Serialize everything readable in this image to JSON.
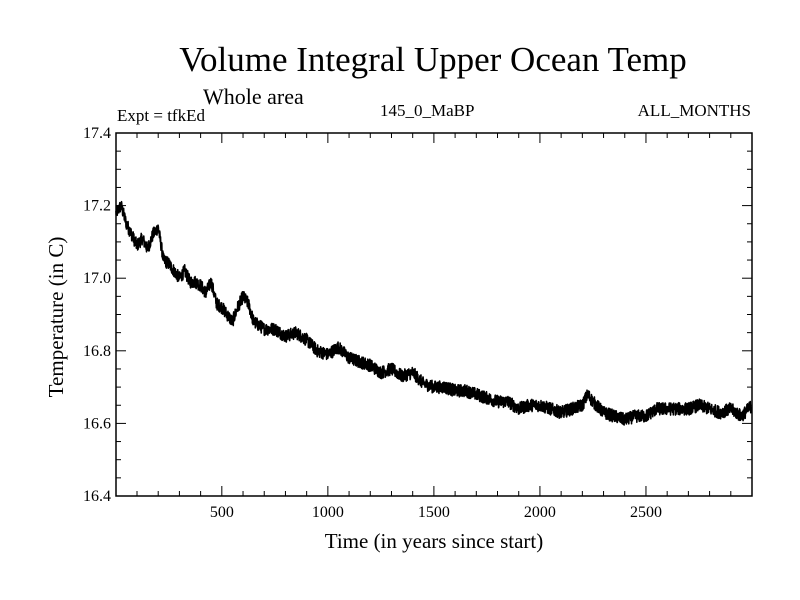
{
  "header": {
    "title": "Volume Integral Upper Ocean Temp",
    "subtitle": "Whole area",
    "expt": "Expt = tfkEd",
    "period": "145_0_MaBP",
    "months": "ALL_MONTHS"
  },
  "chart_data": {
    "type": "line",
    "xlabel": "Time (in years since start)",
    "ylabel": "Temperature (in C)",
    "xlim": [
      1,
      3000
    ],
    "ylim": [
      16.4,
      17.4
    ],
    "xticks": [
      500,
      1000,
      1500,
      2000,
      2500
    ],
    "yticks": [
      16.4,
      16.6,
      16.8,
      17.0,
      17.2,
      17.4
    ],
    "ytick_labels": [
      "16.4",
      "16.6",
      "16.8",
      "17.0",
      "17.2",
      "17.4"
    ],
    "grid": false,
    "series": [
      {
        "x": [
          1,
          25,
          50,
          75,
          100,
          125,
          150,
          175,
          200,
          225,
          250,
          275,
          300,
          325,
          350,
          375,
          400,
          425,
          450,
          475,
          500,
          525,
          550,
          575,
          600,
          625,
          650,
          675,
          700,
          750,
          800,
          850,
          900,
          950,
          1000,
          1050,
          1100,
          1150,
          1200,
          1250,
          1300,
          1350,
          1400,
          1450,
          1500,
          1550,
          1600,
          1650,
          1700,
          1750,
          1800,
          1850,
          1900,
          1950,
          2000,
          2050,
          2100,
          2150,
          2200,
          2225,
          2250,
          2300,
          2350,
          2400,
          2450,
          2500,
          2550,
          2600,
          2650,
          2700,
          2750,
          2800,
          2850,
          2900,
          2950,
          3000
        ],
        "y": [
          17.18,
          17.2,
          17.15,
          17.12,
          17.09,
          17.11,
          17.08,
          17.12,
          17.14,
          17.05,
          17.04,
          17.02,
          17.0,
          17.02,
          16.99,
          16.99,
          16.98,
          16.96,
          16.99,
          16.93,
          16.92,
          16.9,
          16.88,
          16.92,
          16.95,
          16.93,
          16.88,
          16.87,
          16.86,
          16.86,
          16.84,
          16.85,
          16.83,
          16.8,
          16.79,
          16.81,
          16.78,
          16.77,
          16.76,
          16.74,
          16.75,
          16.73,
          16.74,
          16.71,
          16.7,
          16.7,
          16.69,
          16.69,
          16.68,
          16.67,
          16.66,
          16.66,
          16.64,
          16.65,
          16.65,
          16.64,
          16.63,
          16.64,
          16.65,
          16.68,
          16.66,
          16.63,
          16.62,
          16.61,
          16.62,
          16.62,
          16.64,
          16.64,
          16.64,
          16.64,
          16.65,
          16.64,
          16.63,
          16.64,
          16.62,
          16.65
        ]
      }
    ]
  }
}
